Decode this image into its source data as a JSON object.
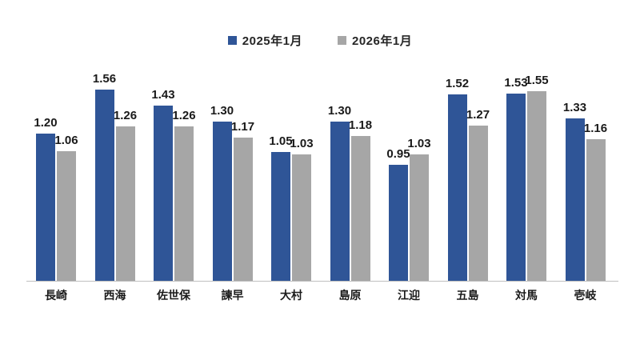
{
  "chart_data": {
    "type": "bar",
    "title": "",
    "xlabel": "",
    "ylabel": "",
    "categories": [
      "長崎",
      "西海",
      "佐世保",
      "諫早",
      "大村",
      "島原",
      "江迎",
      "五島",
      "対馬",
      "壱岐"
    ],
    "series": [
      {
        "name": "2025年1月",
        "color": "#2F5597",
        "values": [
          1.2,
          1.56,
          1.43,
          1.3,
          1.05,
          1.3,
          0.95,
          1.52,
          1.53,
          1.33
        ]
      },
      {
        "name": "2026年1月",
        "color": "#A6A6A6",
        "values": [
          1.06,
          1.26,
          1.26,
          1.17,
          1.03,
          1.18,
          1.03,
          1.27,
          1.55,
          1.16
        ]
      }
    ],
    "ylim": [
      0,
      1.8
    ],
    "grid": false,
    "legend_position": "top-center",
    "value_labels": true,
    "value_label_decimals": 2
  },
  "colors": {
    "background": "#FFFFFF",
    "axis_line": "#BFBFBF",
    "text": "#1A1A1A"
  }
}
